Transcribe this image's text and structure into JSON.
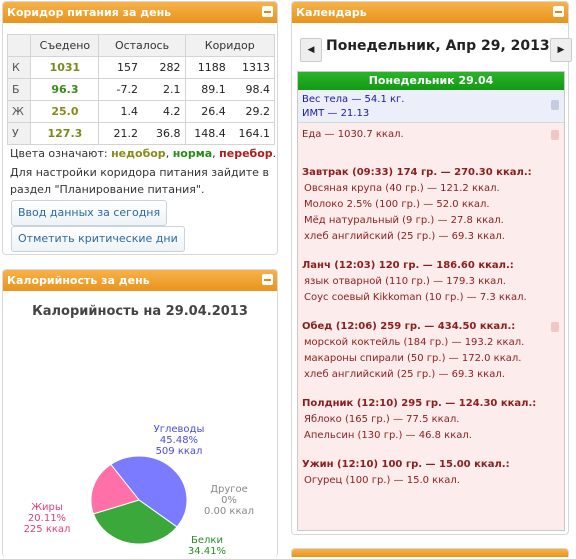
{
  "corridor": {
    "title": "Коридор питания за день",
    "headers": [
      "",
      "Съедено",
      "Осталось",
      "",
      "Коридор",
      ""
    ],
    "rows": [
      {
        "label": "К",
        "eaten": "1031",
        "left_min": "157",
        "left_max": "282",
        "cor_min": "1188",
        "cor_max": "1313",
        "color": "#7a8a1a"
      },
      {
        "label": "Б",
        "eaten": "96.3",
        "left_min": "-7.2",
        "left_max": "2.1",
        "cor_min": "89.1",
        "cor_max": "98.4",
        "color": "#3a8a1a"
      },
      {
        "label": "Ж",
        "eaten": "25.0",
        "left_min": "1.4",
        "left_max": "4.2",
        "cor_min": "26.4",
        "cor_max": "29.2",
        "color": "#8a8a1a"
      },
      {
        "label": "У",
        "eaten": "127.3",
        "left_min": "21.2",
        "left_max": "36.8",
        "cor_min": "148.4",
        "cor_max": "164.1",
        "color": "#7a8a1a"
      }
    ],
    "colors_label": "Цвета означают:",
    "under": "недобор",
    "normal": "норма",
    "over": "перебор",
    "setup_line1": "Для настройки коридора питания зайдите в",
    "setup_line2": "раздел \"Планирование питания\".",
    "btn_input": "Ввод данных за сегодня",
    "btn_critical": "Отметить критические дни"
  },
  "calories": {
    "title": "Калорийность за день",
    "chart_title": "Калорийность на 29.04.2013"
  },
  "chart_data": {
    "type": "pie",
    "title": "Калорийность на 29.04.2013",
    "slices": [
      {
        "name": "Углеводы",
        "percent": 45.48,
        "value_label": "45.48%",
        "kcal_label": "509 ккал",
        "color": "#7b7bff"
      },
      {
        "name": "Белки",
        "percent": 34.41,
        "value_label": "34.41%",
        "kcal_label": "",
        "color": "#3aa83a"
      },
      {
        "name": "Жиры",
        "percent": 20.11,
        "value_label": "20.11%",
        "kcal_label": "225 ккал",
        "color": "#ff6fa8"
      },
      {
        "name": "Другое",
        "percent": 0,
        "value_label": "0%",
        "kcal_label": "0.00 ккал",
        "color": "#999999"
      }
    ]
  },
  "calendar": {
    "title": "Календарь",
    "prev": "◀",
    "next": "▶",
    "date_heading": "Понедельник, Апр 29, 2013",
    "day_bar": "Понедельник 29.04",
    "weight": "Вес тела — 54.1 кг.",
    "bmi": "ИМТ — 21.13",
    "food_total": "Еда — 1030.7 ккал.",
    "meals": [
      {
        "head": "Завтрак (09:33) 174 гр. — 270.30 ккал.:",
        "items": [
          "Овсяная крупа (40 гр.) — 121.2 ккал.",
          "Молоко 2.5% (100 гр.) — 52.0 ккал.",
          "Мёд натуральный (9 гр.) — 27.8 ккал.",
          "хлеб английский (25 гр.) — 69.3 ккал."
        ]
      },
      {
        "head": "Ланч (12:03) 120 гр. — 186.60 ккал.:",
        "items": [
          "язык отварной (110 гр.) — 179.3 ккал.",
          "Соус соевый Kikkoman (10 гр.) — 7.3 ккал."
        ]
      },
      {
        "head": "Обед (12:06) 259 гр. — 434.50 ккал.:",
        "items": [
          "морской коктейль (184 гр.) — 193.2 ккал.",
          "макароны спирали (50 гр.) — 172.0 ккал.",
          "хлеб английский (25 гр.) — 69.3 ккал."
        ]
      },
      {
        "head": "Полдник (12:10) 295 гр. — 124.30 ккал.:",
        "items": [
          "Яблоко (165 гр.) — 77.5 ккал.",
          "Апельсин (130 гр.) — 46.8 ккал."
        ]
      },
      {
        "head": "Ужин (12:10) 100 гр. — 15.00 ккал.:",
        "items": [
          "Огурец (100 гр.) — 15.0 ккал."
        ]
      }
    ]
  }
}
